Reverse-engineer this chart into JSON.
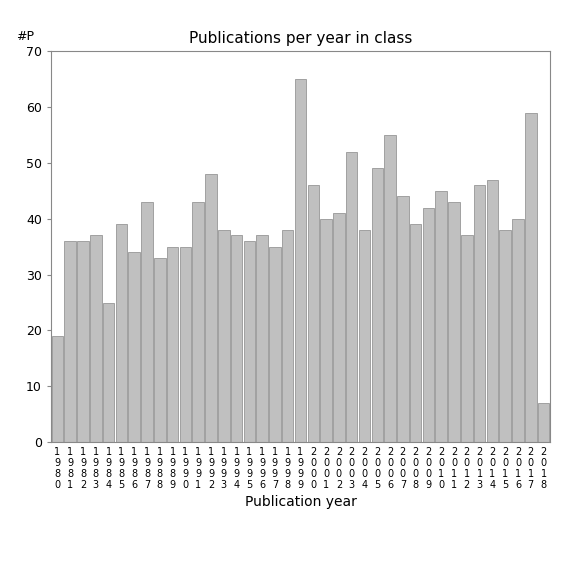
{
  "title": "Publications per year in class",
  "ylabel": "#P",
  "xlabel": "Publication year",
  "years": [
    1980,
    1981,
    1982,
    1983,
    1984,
    1985,
    1986,
    1987,
    1988,
    1989,
    1990,
    1991,
    1992,
    1993,
    1994,
    1995,
    1996,
    1997,
    1998,
    1999,
    2000,
    2001,
    2002,
    2003,
    2004,
    2005,
    2006,
    2007,
    2008,
    2009,
    2010,
    2011,
    2012,
    2013,
    2014,
    2015,
    2016,
    2017,
    2018
  ],
  "values": [
    19,
    36,
    36,
    37,
    25,
    39,
    34,
    43,
    33,
    35,
    35,
    43,
    48,
    38,
    37,
    36,
    37,
    35,
    38,
    65,
    46,
    40,
    41,
    52,
    38,
    49,
    55,
    44,
    39,
    42,
    45,
    43,
    37,
    46,
    47,
    38,
    40,
    59,
    7
  ],
  "bar_color": "#c0c0c0",
  "bar_edgecolor": "#888888",
  "ylim": [
    0,
    70
  ],
  "yticks": [
    0,
    10,
    20,
    30,
    40,
    50,
    60,
    70
  ],
  "title_fontsize": 11,
  "axis_label_fontsize": 10,
  "tick_fontsize": 9,
  "bg_color": "#ffffff"
}
